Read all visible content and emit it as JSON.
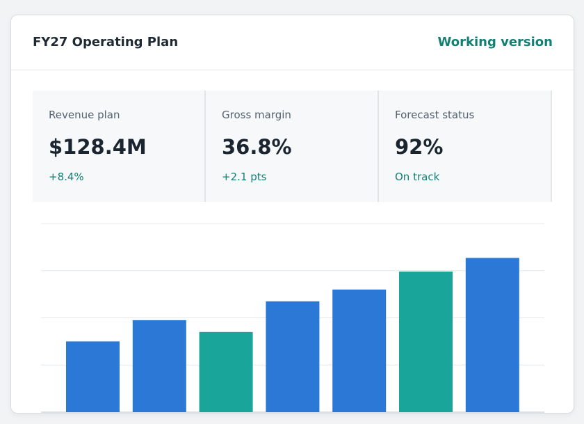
{
  "header": {
    "title": "FY27 Operating Plan",
    "version_label": "Working version"
  },
  "kpis": [
    {
      "label": "Revenue plan",
      "value": "$128.4M",
      "delta": "+8.4%"
    },
    {
      "label": "Gross margin",
      "value": "36.8%",
      "delta": "+2.1 pts"
    },
    {
      "label": "Forecast status",
      "value": "92%",
      "delta": "On track"
    }
  ],
  "colors": {
    "accent": "#147f73",
    "bar_blue": "#2b78d6",
    "bar_teal": "#1aa59a"
  },
  "chart_data": {
    "type": "bar",
    "categories": [
      "",
      "",
      "",
      "",
      "",
      "",
      ""
    ],
    "values": [
      1.5,
      1.95,
      1.7,
      2.35,
      2.6,
      2.98,
      3.27
    ],
    "bar_colors": [
      "#2b78d6",
      "#2b78d6",
      "#1aa59a",
      "#2b78d6",
      "#2b78d6",
      "#1aa59a",
      "#2b78d6"
    ],
    "ylim": [
      0,
      4
    ],
    "grid": true,
    "title": "",
    "xlabel": "",
    "ylabel": ""
  }
}
